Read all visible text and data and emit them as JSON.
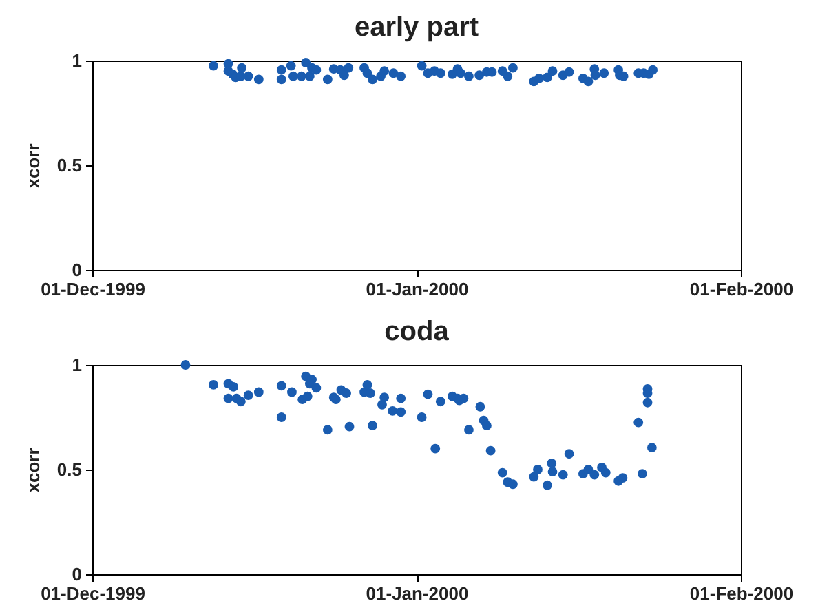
{
  "chart_data": [
    {
      "type": "scatter",
      "title": "early part",
      "ylabel": "xcorr",
      "marker": "circle",
      "xlim": [
        "1999-12-01",
        "2000-02-01"
      ],
      "xticks": [
        {
          "value": "1999-12-01",
          "label": "01-Dec-1999"
        },
        {
          "value": "2000-01-01",
          "label": "01-Jan-2000"
        },
        {
          "value": "2000-02-01",
          "label": "01-Feb-2000"
        }
      ],
      "ylim": [
        0,
        1
      ],
      "yticks": [
        0,
        0.5,
        1
      ],
      "x": [
        "1999-12-12T14:00",
        "1999-12-14T00:00",
        "1999-12-14T00:00",
        "1999-12-14T10:00",
        "1999-12-14T17:00",
        "1999-12-15T07:00",
        "1999-12-15T05:00",
        "1999-12-15T22:00",
        "1999-12-16T22:00",
        "1999-12-19T02:00",
        "1999-12-19T02:00",
        "1999-12-20T00:00",
        "1999-12-20T05:00",
        "1999-12-21T00:00",
        "1999-12-21T10:00",
        "1999-12-21T19:00",
        "1999-12-22T00:00",
        "1999-12-22T10:00",
        "1999-12-23T12:00",
        "1999-12-24T02:00",
        "1999-12-24T17:00",
        "1999-12-25T02:00",
        "1999-12-25T12:00",
        "1999-12-27T00:00",
        "1999-12-27T07:00",
        "1999-12-27T19:00",
        "1999-12-28T14:00",
        "1999-12-28T22:00",
        "1999-12-29T19:00",
        "1999-12-30T12:00",
        "2000-01-01T12:00",
        "2000-01-02T02:00",
        "2000-01-02T17:00",
        "2000-01-03T07:00",
        "2000-01-04T10:00",
        "2000-01-04T22:00",
        "2000-01-05T05:00",
        "2000-01-06T00:00",
        "2000-01-07T00:00",
        "2000-01-07T17:00",
        "2000-01-08T05:00",
        "2000-01-09T05:00",
        "2000-01-09T17:00",
        "2000-01-10T05:00",
        "2000-01-12T05:00",
        "2000-01-12T17:00",
        "2000-01-13T12:00",
        "2000-01-14T00:00",
        "2000-01-15T00:00",
        "2000-01-15T14:00",
        "2000-01-16T22:00",
        "2000-01-17T10:00",
        "2000-01-18T00:00",
        "2000-01-18T02:00",
        "2000-01-18T22:00",
        "2000-01-20T07:00",
        "2000-01-20T10:00",
        "2000-01-20T19:00",
        "2000-01-22T05:00",
        "2000-01-22T17:00",
        "2000-01-23T05:00",
        "2000-01-23T14:00"
      ],
      "series": [
        {
          "color": "#1a5cb0",
          "values": [
            0.975,
            0.985,
            0.95,
            0.935,
            0.92,
            0.965,
            0.925,
            0.925,
            0.91,
            0.955,
            0.91,
            0.975,
            0.925,
            0.925,
            0.99,
            0.925,
            0.965,
            0.955,
            0.91,
            0.96,
            0.955,
            0.93,
            0.965,
            0.965,
            0.94,
            0.91,
            0.925,
            0.95,
            0.94,
            0.925,
            0.975,
            0.94,
            0.95,
            0.94,
            0.935,
            0.96,
            0.94,
            0.925,
            0.93,
            0.945,
            0.945,
            0.95,
            0.925,
            0.965,
            0.9,
            0.915,
            0.92,
            0.95,
            0.93,
            0.945,
            0.915,
            0.9,
            0.96,
            0.93,
            0.94,
            0.955,
            0.93,
            0.925,
            0.94,
            0.94,
            0.935,
            0.955
          ]
        }
      ]
    },
    {
      "type": "scatter",
      "title": "coda",
      "ylabel": "xcorr",
      "marker": "circle",
      "xlim": [
        "1999-12-01",
        "2000-02-01"
      ],
      "xticks": [
        {
          "value": "1999-12-01",
          "label": "01-Dec-1999"
        },
        {
          "value": "2000-01-01",
          "label": "01-Jan-2000"
        },
        {
          "value": "2000-02-01",
          "label": "01-Feb-2000"
        }
      ],
      "ylim": [
        0,
        1
      ],
      "yticks": [
        0,
        0.5,
        1
      ],
      "x": [
        "1999-12-09T22:00",
        "1999-12-12T14:00",
        "1999-12-14T00:00",
        "1999-12-14T12:00",
        "1999-12-14T00:00",
        "1999-12-14T19:00",
        "1999-12-15T05:00",
        "1999-12-15T22:00",
        "1999-12-16T22:00",
        "1999-12-19T02:00",
        "1999-12-19T02:00",
        "1999-12-20T02:00",
        "1999-12-21T02:00",
        "1999-12-21T14:00",
        "1999-12-21T10:00",
        "1999-12-22T00:00",
        "1999-12-21T19:00",
        "1999-12-22T10:00",
        "1999-12-23T12:00",
        "1999-12-24T02:00",
        "1999-12-24T07:00",
        "1999-12-24T19:00",
        "1999-12-25T07:00",
        "1999-12-25T14:00",
        "1999-12-27T00:00",
        "1999-12-27T07:00",
        "1999-12-27T14:00",
        "1999-12-27T19:00",
        "1999-12-28T17:00",
        "1999-12-28T22:00",
        "1999-12-29T17:00",
        "1999-12-30T12:00",
        "1999-12-30T12:00",
        "2000-01-01T12:00",
        "2000-01-02T02:00",
        "2000-01-02T19:00",
        "2000-01-03T07:00",
        "2000-01-04T10:00",
        "2000-01-04T22:00",
        "2000-01-05T02:00",
        "2000-01-05T12:00",
        "2000-01-06T00:00",
        "2000-01-07T02:00",
        "2000-01-07T10:00",
        "2000-01-07T17:00",
        "2000-01-08T02:00",
        "2000-01-09T05:00",
        "2000-01-09T17:00",
        "2000-01-10T05:00",
        "2000-01-12T05:00",
        "2000-01-12T14:00",
        "2000-01-13T12:00",
        "2000-01-13T22:00",
        "2000-01-14T00:00",
        "2000-01-15T00:00",
        "2000-01-15T14:00",
        "2000-01-16T22:00",
        "2000-01-17T10:00",
        "2000-01-18T00:00",
        "2000-01-18T17:00",
        "2000-01-19T02:00",
        "2000-01-20T07:00",
        "2000-01-20T17:00",
        "2000-01-22T05:00",
        "2000-01-22T14:00",
        "2000-01-23T02:00",
        "2000-01-23T02:00",
        "2000-01-23T02:00",
        "2000-01-23T12:00"
      ],
      "series": [
        {
          "color": "#1a5cb0",
          "values": [
            1.0,
            0.905,
            0.91,
            0.895,
            0.84,
            0.84,
            0.825,
            0.855,
            0.87,
            0.9,
            0.75,
            0.87,
            0.835,
            0.85,
            0.945,
            0.93,
            0.91,
            0.89,
            0.69,
            0.845,
            0.835,
            0.88,
            0.865,
            0.705,
            0.87,
            0.905,
            0.865,
            0.71,
            0.81,
            0.845,
            0.78,
            0.84,
            0.775,
            0.75,
            0.86,
            0.6,
            0.825,
            0.85,
            0.84,
            0.83,
            0.84,
            0.69,
            0.8,
            0.735,
            0.71,
            0.59,
            0.485,
            0.44,
            0.43,
            0.465,
            0.5,
            0.425,
            0.53,
            0.49,
            0.475,
            0.575,
            0.48,
            0.5,
            0.475,
            0.51,
            0.485,
            0.445,
            0.46,
            0.725,
            0.48,
            0.885,
            0.865,
            0.82,
            0.605
          ]
        }
      ]
    }
  ]
}
